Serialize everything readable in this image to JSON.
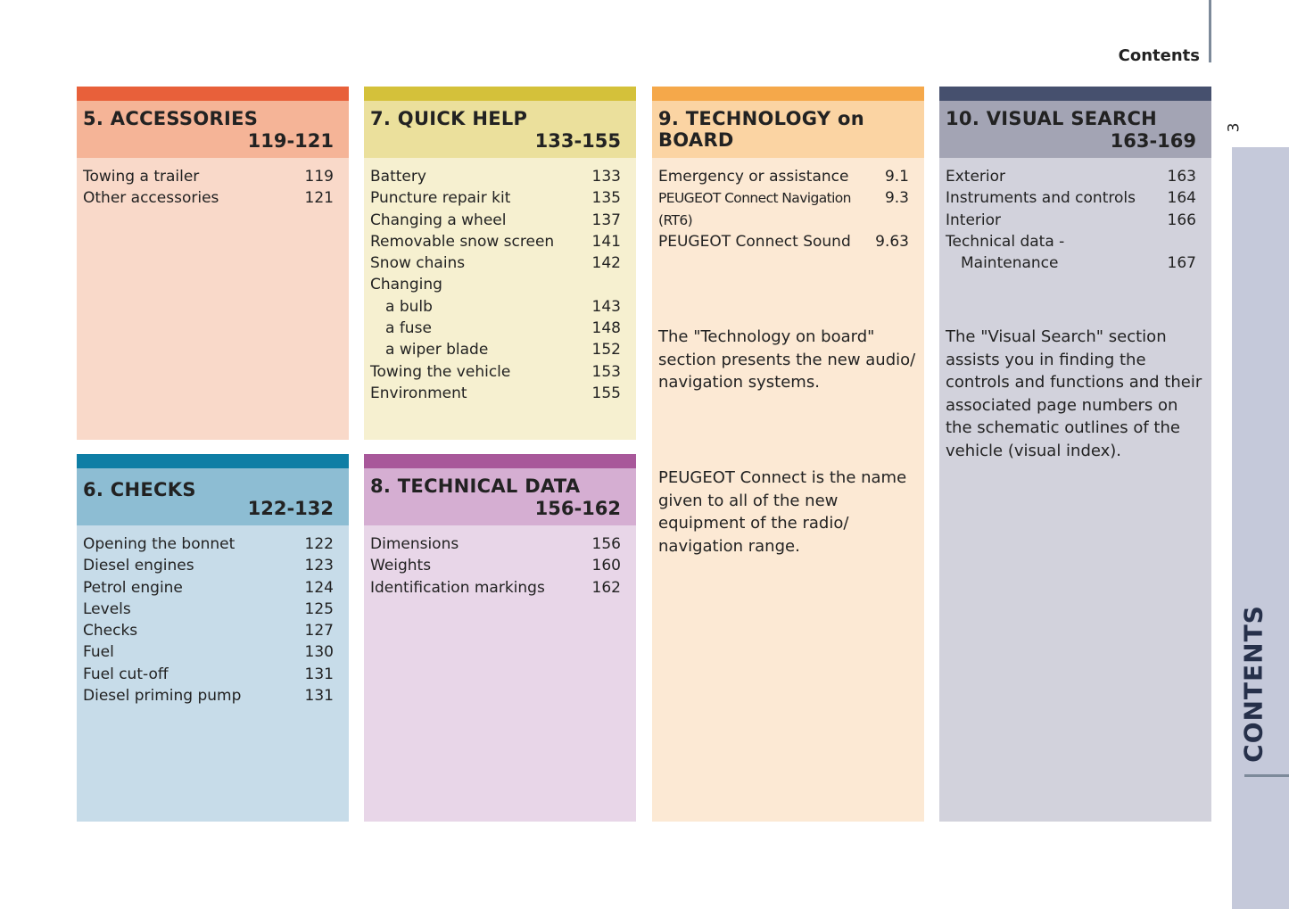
{
  "header": {
    "title": "Contents",
    "page_number": "3",
    "tab": "CONTENTS"
  },
  "sections": [
    {
      "title": "5. ACCESSORIES",
      "pages": "119-121",
      "items": [
        {
          "label": "Towing a trailer",
          "page": "119"
        },
        {
          "label": "Other accessories",
          "page": "121"
        }
      ]
    },
    {
      "title": "7. QUICK HELP",
      "pages": "133-155",
      "items": [
        {
          "label": "Battery",
          "page": "133"
        },
        {
          "label": "Puncture repair kit",
          "page": "135"
        },
        {
          "label": "Changing a wheel",
          "page": "137"
        },
        {
          "label": "Removable snow screen",
          "page": "141"
        },
        {
          "label": "Snow chains",
          "page": "142"
        },
        {
          "label": "Changing"
        },
        {
          "label": "a bulb",
          "page": "143",
          "indent": true
        },
        {
          "label": "a fuse",
          "page": "148",
          "indent": true
        },
        {
          "label": "a wiper blade",
          "page": "152",
          "indent": true
        },
        {
          "label": "Towing the vehicle",
          "page": "153"
        },
        {
          "label": "Environment",
          "page": "155"
        }
      ]
    },
    {
      "title": "9. TECHNOLOGY on BOARD",
      "items": [
        {
          "label": "Emergency or assistance",
          "page": "9.1"
        },
        {
          "label": "PEUGEOT Connect Navigation (RT6)",
          "page": "9.3"
        },
        {
          "label": "PEUGEOT Connect Sound",
          "page": "9.63"
        }
      ],
      "descriptions": [
        "The \"Technology on board\" section presents the new audio/ navigation systems.",
        "PEUGEOT Connect is the name given to all of the new equipment of the radio/ navigation range."
      ]
    },
    {
      "title": "10. VISUAL SEARCH",
      "pages": "163-169",
      "items": [
        {
          "label": "Exterior",
          "page": "163"
        },
        {
          "label": "Instruments and controls",
          "page": "164"
        },
        {
          "label": "Interior",
          "page": "166"
        },
        {
          "label": "Technical data -"
        },
        {
          "label": "Maintenance",
          "page": "167",
          "indent": true
        }
      ],
      "descriptions": [
        "The \"Visual Search\" section assists you in finding the controls and functions and their associated page numbers on the schematic outlines of the vehicle (visual index)."
      ]
    },
    {
      "title": "6. CHECKS",
      "pages": "122-132",
      "items": [
        {
          "label": "Opening the bonnet",
          "page": "122"
        },
        {
          "label": "Diesel engines",
          "page": "123"
        },
        {
          "label": "Petrol engine",
          "page": "124"
        },
        {
          "label": "Levels",
          "page": "125"
        },
        {
          "label": "Checks",
          "page": "127"
        },
        {
          "label": "Fuel",
          "page": "130"
        },
        {
          "label": "Fuel cut-off",
          "page": "131"
        },
        {
          "label": "Diesel priming pump",
          "page": "131"
        }
      ]
    },
    {
      "title": "8. TECHNICAL DATA",
      "pages": "156-162",
      "items": [
        {
          "label": "Dimensions",
          "page": "156"
        },
        {
          "label": "Weights",
          "page": "160"
        },
        {
          "label": "Identification markings",
          "page": "162"
        }
      ]
    }
  ]
}
